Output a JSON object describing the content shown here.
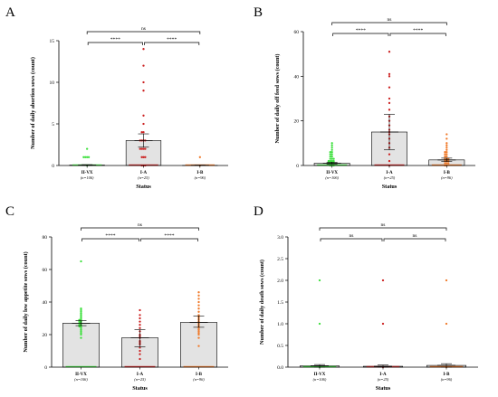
{
  "colors": {
    "green": "#3ee03e",
    "red": "#cc2222",
    "orange": "#f07a2a",
    "bar_fill": "#e3e3e3",
    "axis": "#000000"
  },
  "chart_data": [
    {
      "panel": "A",
      "type": "bar",
      "categories": [
        "II-VX",
        "I-A",
        "I-B"
      ],
      "category_n": [
        "(n=106)",
        "(n=25)",
        "(n=96)"
      ],
      "xlabel": "Status",
      "ylabel": "Number of daily abortion sows (count)",
      "ylim": [
        0,
        15
      ],
      "yticks": [
        0,
        5,
        10,
        15
      ],
      "values": [
        0.05,
        3.0,
        0.02
      ],
      "error_bars": [
        [
          0.0,
          0.1
        ],
        [
          2.2,
          3.8
        ],
        [
          0.0,
          0.05
        ]
      ],
      "points": [
        {
          "values": [
            0,
            1,
            1,
            1,
            1,
            2
          ]
        },
        {
          "values": [
            0,
            0,
            0,
            1,
            1,
            1,
            2,
            2,
            2,
            2,
            3,
            3,
            3,
            3,
            4,
            4,
            5,
            6,
            9,
            10,
            12,
            14
          ]
        },
        {
          "values": [
            0,
            1
          ]
        }
      ],
      "comparisons": [
        {
          "from": 0,
          "to": 1,
          "label": "****"
        },
        {
          "from": 1,
          "to": 2,
          "label": "****"
        },
        {
          "from": 0,
          "to": 2,
          "label": "ns"
        }
      ]
    },
    {
      "panel": "B",
      "type": "bar",
      "categories": [
        "II-VX",
        "I-A",
        "I-B"
      ],
      "category_n": [
        "(n=106)",
        "(n=25)",
        "(n=96)"
      ],
      "xlabel": "Status",
      "ylabel": "Number of daily off feed sows (count)",
      "ylim": [
        0,
        60
      ],
      "yticks": [
        0,
        20,
        40,
        60
      ],
      "values": [
        1.0,
        15.0,
        2.5
      ],
      "error_bars": [
        [
          0.6,
          1.5
        ],
        [
          7.0,
          23.0
        ],
        [
          1.8,
          3.3
        ]
      ],
      "points": [
        {
          "values": [
            0,
            0,
            0,
            1,
            1,
            1,
            1,
            2,
            2,
            2,
            2,
            3,
            3,
            3,
            4,
            4,
            5,
            5,
            6,
            6,
            7,
            8,
            9,
            10
          ]
        },
        {
          "values": [
            0,
            2,
            5,
            8,
            10,
            12,
            14,
            15,
            16,
            18,
            20,
            22,
            25,
            28,
            30,
            35,
            40,
            41,
            51
          ]
        },
        {
          "values": [
            0,
            0,
            1,
            1,
            1,
            2,
            2,
            2,
            3,
            3,
            3,
            4,
            4,
            5,
            5,
            6,
            6,
            7,
            8,
            9,
            10,
            12,
            14
          ]
        }
      ],
      "comparisons": [
        {
          "from": 0,
          "to": 1,
          "label": "****"
        },
        {
          "from": 1,
          "to": 2,
          "label": "****"
        },
        {
          "from": 0,
          "to": 2,
          "label": "ns"
        }
      ]
    },
    {
      "panel": "C",
      "type": "bar",
      "categories": [
        "II-VX",
        "I-A",
        "I-B"
      ],
      "category_n": [
        "(n=106)",
        "(n=25)",
        "(n=96)"
      ],
      "xlabel": "Status",
      "ylabel": "Number of daily low appetite sows (count)",
      "ylim": [
        0,
        80
      ],
      "yticks": [
        0,
        20,
        40,
        60,
        80
      ],
      "values": [
        27,
        18,
        27.5
      ],
      "error_bars": [
        [
          25.5,
          28.5
        ],
        [
          12.5,
          23.0
        ],
        [
          24.5,
          31.5
        ]
      ],
      "points": [
        {
          "values": [
            18,
            20,
            21,
            22,
            23,
            24,
            25,
            25,
            26,
            26,
            27,
            27,
            28,
            28,
            29,
            29,
            30,
            31,
            32,
            33,
            34,
            35,
            36,
            65
          ]
        },
        {
          "values": [
            5,
            8,
            10,
            12,
            14,
            15,
            16,
            18,
            19,
            20,
            22,
            24,
            26,
            28,
            30,
            32,
            35
          ]
        },
        {
          "values": [
            13,
            18,
            20,
            21,
            22,
            23,
            24,
            25,
            26,
            27,
            28,
            29,
            30,
            31,
            32,
            34,
            36,
            38,
            40,
            42,
            44,
            46
          ]
        }
      ],
      "comparisons": [
        {
          "from": 0,
          "to": 1,
          "label": "****"
        },
        {
          "from": 1,
          "to": 2,
          "label": "****"
        },
        {
          "from": 0,
          "to": 2,
          "label": "ns"
        }
      ]
    },
    {
      "panel": "D",
      "type": "bar",
      "categories": [
        "II-VX",
        "I-A",
        "I-B"
      ],
      "category_n": [
        "(n=106)",
        "(n=25)",
        "(n=96)"
      ],
      "xlabel": "Status",
      "ylabel": "Number of daily death sows (count)",
      "ylim": [
        0,
        3.0
      ],
      "yticks": [
        0.0,
        0.5,
        1.0,
        1.5,
        2.0,
        2.5,
        3.0
      ],
      "ytick_labels": [
        "0.0",
        "0.5",
        "1.0",
        "1.5",
        "2.0",
        "2.5",
        "3.0"
      ],
      "values": [
        0.03,
        0.02,
        0.04
      ],
      "error_bars": [
        [
          0.0,
          0.06
        ],
        [
          0.0,
          0.05
        ],
        [
          0.0,
          0.08
        ]
      ],
      "points": [
        {
          "values": [
            0,
            1,
            2
          ]
        },
        {
          "values": [
            0,
            1,
            2
          ]
        },
        {
          "values": [
            0,
            1,
            2
          ]
        }
      ],
      "comparisons": [
        {
          "from": 0,
          "to": 1,
          "label": "ns"
        },
        {
          "from": 1,
          "to": 2,
          "label": "ns"
        },
        {
          "from": 0,
          "to": 2,
          "label": "ns"
        }
      ]
    }
  ]
}
